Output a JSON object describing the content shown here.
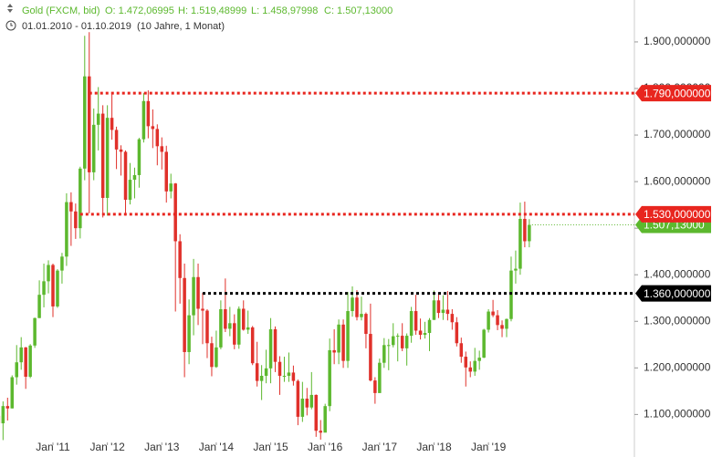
{
  "chart_data": {
    "type": "candlestick",
    "title": "Gold (FXCM, bid)",
    "ohlc_labels": [
      "O: 1.472,06995",
      "H: 1.519,48999",
      "L: 1.458,97998",
      "C: 1.507,13000"
    ],
    "date_range": "01.01.2010 - 01.10.2019",
    "period": "(10 Jahre, 1 Monat)",
    "up_color": "#5cb82e",
    "down_color": "#e0302a",
    "x": [
      "2010-01",
      "2010-02",
      "2010-03",
      "2010-04",
      "2010-05",
      "2010-06",
      "2010-07",
      "2010-08",
      "2010-09",
      "2010-10",
      "2010-11",
      "2010-12",
      "2011-01",
      "2011-02",
      "2011-03",
      "2011-04",
      "2011-05",
      "2011-06",
      "2011-07",
      "2011-08",
      "2011-09",
      "2011-10",
      "2011-11",
      "2011-12",
      "2012-01",
      "2012-02",
      "2012-03",
      "2012-04",
      "2012-05",
      "2012-06",
      "2012-07",
      "2012-08",
      "2012-09",
      "2012-10",
      "2012-11",
      "2012-12",
      "2013-01",
      "2013-02",
      "2013-03",
      "2013-04",
      "2013-05",
      "2013-06",
      "2013-07",
      "2013-08",
      "2013-09",
      "2013-10",
      "2013-11",
      "2013-12",
      "2014-01",
      "2014-02",
      "2014-03",
      "2014-04",
      "2014-05",
      "2014-06",
      "2014-07",
      "2014-08",
      "2014-09",
      "2014-10",
      "2014-11",
      "2014-12",
      "2015-01",
      "2015-02",
      "2015-03",
      "2015-04",
      "2015-05",
      "2015-06",
      "2015-07",
      "2015-08",
      "2015-09",
      "2015-10",
      "2015-11",
      "2015-12",
      "2016-01",
      "2016-02",
      "2016-03",
      "2016-04",
      "2016-05",
      "2016-06",
      "2016-07",
      "2016-08",
      "2016-09",
      "2016-10",
      "2016-11",
      "2016-12",
      "2017-01",
      "2017-02",
      "2017-03",
      "2017-04",
      "2017-05",
      "2017-06",
      "2017-07",
      "2017-08",
      "2017-09",
      "2017-10",
      "2017-11",
      "2017-12",
      "2018-01",
      "2018-02",
      "2018-03",
      "2018-04",
      "2018-05",
      "2018-06",
      "2018-07",
      "2018-08",
      "2018-09",
      "2018-10",
      "2018-11",
      "2018-12",
      "2019-01",
      "2019-02",
      "2019-03",
      "2019-04",
      "2019-05",
      "2019-06",
      "2019-07",
      "2019-08",
      "2019-09",
      "2019-10"
    ],
    "candles": [
      [
        1097,
        1161,
        1075,
        1081
      ],
      [
        1081,
        1128,
        1045,
        1118
      ],
      [
        1118,
        1136,
        1087,
        1113
      ],
      [
        1113,
        1184,
        1113,
        1180
      ],
      [
        1180,
        1249,
        1164,
        1212
      ],
      [
        1212,
        1266,
        1196,
        1244
      ],
      [
        1244,
        1245,
        1155,
        1181
      ],
      [
        1181,
        1251,
        1178,
        1248
      ],
      [
        1248,
        1308,
        1243,
        1307
      ],
      [
        1307,
        1388,
        1307,
        1357
      ],
      [
        1357,
        1424,
        1330,
        1386
      ],
      [
        1386,
        1431,
        1360,
        1421
      ],
      [
        1421,
        1424,
        1309,
        1332
      ],
      [
        1332,
        1412,
        1329,
        1409
      ],
      [
        1409,
        1447,
        1381,
        1439
      ],
      [
        1439,
        1575,
        1419,
        1556
      ],
      [
        1556,
        1577,
        1462,
        1536
      ],
      [
        1536,
        1553,
        1477,
        1500
      ],
      [
        1500,
        1632,
        1478,
        1628
      ],
      [
        1628,
        1913,
        1603,
        1826
      ],
      [
        1826,
        1921,
        1532,
        1620
      ],
      [
        1620,
        1757,
        1603,
        1722
      ],
      [
        1722,
        1803,
        1667,
        1746
      ],
      [
        1746,
        1764,
        1523,
        1565
      ],
      [
        1565,
        1764,
        1527,
        1737
      ],
      [
        1737,
        1792,
        1690,
        1711
      ],
      [
        1711,
        1718,
        1627,
        1669
      ],
      [
        1669,
        1678,
        1613,
        1664
      ],
      [
        1664,
        1667,
        1527,
        1561
      ],
      [
        1561,
        1640,
        1551,
        1604
      ],
      [
        1604,
        1630,
        1564,
        1614
      ],
      [
        1614,
        1694,
        1587,
        1691
      ],
      [
        1691,
        1790,
        1684,
        1773
      ],
      [
        1773,
        1796,
        1693,
        1719
      ],
      [
        1719,
        1755,
        1672,
        1713
      ],
      [
        1713,
        1723,
        1635,
        1676
      ],
      [
        1676,
        1695,
        1626,
        1664
      ],
      [
        1664,
        1677,
        1555,
        1579
      ],
      [
        1579,
        1617,
        1564,
        1596
      ],
      [
        1596,
        1597,
        1321,
        1472
      ],
      [
        1472,
        1487,
        1338,
        1393
      ],
      [
        1393,
        1424,
        1180,
        1234
      ],
      [
        1234,
        1347,
        1208,
        1313
      ],
      [
        1313,
        1434,
        1270,
        1395
      ],
      [
        1395,
        1424,
        1292,
        1327
      ],
      [
        1327,
        1361,
        1251,
        1323
      ],
      [
        1323,
        1326,
        1221,
        1253
      ],
      [
        1253,
        1267,
        1182,
        1202
      ],
      [
        1202,
        1280,
        1200,
        1244
      ],
      [
        1244,
        1345,
        1240,
        1326
      ],
      [
        1326,
        1392,
        1277,
        1284
      ],
      [
        1284,
        1331,
        1268,
        1296
      ],
      [
        1296,
        1315,
        1240,
        1250
      ],
      [
        1250,
        1332,
        1241,
        1327
      ],
      [
        1327,
        1345,
        1280,
        1282
      ],
      [
        1282,
        1323,
        1273,
        1287
      ],
      [
        1287,
        1290,
        1206,
        1210
      ],
      [
        1210,
        1256,
        1160,
        1172
      ],
      [
        1172,
        1206,
        1131,
        1183
      ],
      [
        1183,
        1239,
        1167,
        1199
      ],
      [
        1199,
        1307,
        1167,
        1283
      ],
      [
        1283,
        1289,
        1191,
        1213
      ],
      [
        1213,
        1225,
        1142,
        1183
      ],
      [
        1183,
        1224,
        1170,
        1183
      ],
      [
        1183,
        1233,
        1170,
        1190
      ],
      [
        1190,
        1205,
        1162,
        1172
      ],
      [
        1172,
        1175,
        1077,
        1095
      ],
      [
        1095,
        1170,
        1084,
        1134
      ],
      [
        1134,
        1157,
        1098,
        1115
      ],
      [
        1115,
        1191,
        1111,
        1142
      ],
      [
        1142,
        1143,
        1052,
        1065
      ],
      [
        1065,
        1088,
        1046,
        1061
      ],
      [
        1061,
        1123,
        1062,
        1118
      ],
      [
        1118,
        1263,
        1107,
        1238
      ],
      [
        1238,
        1283,
        1208,
        1233
      ],
      [
        1233,
        1304,
        1208,
        1293
      ],
      [
        1293,
        1304,
        1200,
        1215
      ],
      [
        1215,
        1363,
        1200,
        1322
      ],
      [
        1322,
        1375,
        1310,
        1351
      ],
      [
        1351,
        1367,
        1302,
        1309
      ],
      [
        1309,
        1353,
        1302,
        1316
      ],
      [
        1316,
        1319,
        1242,
        1273
      ],
      [
        1273,
        1338,
        1171,
        1173
      ],
      [
        1173,
        1180,
        1123,
        1146
      ],
      [
        1146,
        1220,
        1146,
        1211
      ],
      [
        1211,
        1264,
        1200,
        1249
      ],
      [
        1249,
        1262,
        1195,
        1249
      ],
      [
        1249,
        1296,
        1244,
        1268
      ],
      [
        1268,
        1274,
        1214,
        1269
      ],
      [
        1269,
        1296,
        1236,
        1242
      ],
      [
        1242,
        1274,
        1205,
        1269
      ],
      [
        1269,
        1331,
        1254,
        1322
      ],
      [
        1322,
        1357,
        1271,
        1280
      ],
      [
        1280,
        1306,
        1261,
        1271
      ],
      [
        1271,
        1299,
        1263,
        1275
      ],
      [
        1275,
        1307,
        1236,
        1303
      ],
      [
        1303,
        1366,
        1303,
        1345
      ],
      [
        1345,
        1362,
        1307,
        1318
      ],
      [
        1318,
        1356,
        1303,
        1325
      ],
      [
        1325,
        1365,
        1302,
        1316
      ],
      [
        1316,
        1326,
        1282,
        1298
      ],
      [
        1298,
        1309,
        1246,
        1253
      ],
      [
        1253,
        1265,
        1211,
        1224
      ],
      [
        1224,
        1235,
        1160,
        1201
      ],
      [
        1201,
        1214,
        1180,
        1192
      ],
      [
        1192,
        1243,
        1183,
        1215
      ],
      [
        1215,
        1237,
        1196,
        1222
      ],
      [
        1222,
        1284,
        1221,
        1282
      ],
      [
        1282,
        1326,
        1276,
        1321
      ],
      [
        1321,
        1346,
        1309,
        1313
      ],
      [
        1313,
        1324,
        1281,
        1292
      ],
      [
        1292,
        1302,
        1266,
        1284
      ],
      [
        1284,
        1306,
        1266,
        1305
      ],
      [
        1305,
        1439,
        1300,
        1409
      ],
      [
        1409,
        1452,
        1381,
        1413
      ],
      [
        1413,
        1555,
        1400,
        1520
      ],
      [
        1520,
        1557,
        1459,
        1472
      ],
      [
        1472.06995,
        1519.48999,
        1458.97998,
        1507.13
      ]
    ],
    "ylim": [
      1040,
      1990
    ],
    "yticks": [
      {
        "value": 1100,
        "label": "1.100,000000"
      },
      {
        "value": 1200,
        "label": "1.200,000000"
      },
      {
        "value": 1300,
        "label": "1.300,000000"
      },
      {
        "value": 1400,
        "label": "1.400,000000"
      },
      {
        "value": 1500,
        "label": "1.500,000000"
      },
      {
        "value": 1600,
        "label": "1.600,000000"
      },
      {
        "value": 1700,
        "label": "1.700,000000"
      },
      {
        "value": 1800,
        "label": "1.800,000000"
      },
      {
        "value": 1900,
        "label": "1.900,000000"
      }
    ],
    "xticks": [
      {
        "value": "2011-01",
        "label": "Jan '11"
      },
      {
        "value": "2012-01",
        "label": "Jan '12"
      },
      {
        "value": "2013-01",
        "label": "Jan '13"
      },
      {
        "value": "2014-01",
        "label": "Jan '14"
      },
      {
        "value": "2015-01",
        "label": "Jan '15"
      },
      {
        "value": "2016-01",
        "label": "Jan '16"
      },
      {
        "value": "2017-01",
        "label": "Jan '17"
      },
      {
        "value": "2018-01",
        "label": "Jan '18"
      },
      {
        "value": "2019-01",
        "label": "Jan '19"
      }
    ],
    "levels": [
      {
        "value": 1790,
        "label": "1.790,000000",
        "color": "#e8261f",
        "from": "2011-09"
      },
      {
        "value": 1530,
        "label": "1.530,000000",
        "color": "#e8261f",
        "from": "2011-07"
      },
      {
        "value": 1360,
        "label": "1.360,000000",
        "color": "#000000",
        "from": "2013-10"
      }
    ],
    "last_price": {
      "value": 1507.13,
      "label": "1.507,13000",
      "color": "#5cb82e"
    }
  }
}
